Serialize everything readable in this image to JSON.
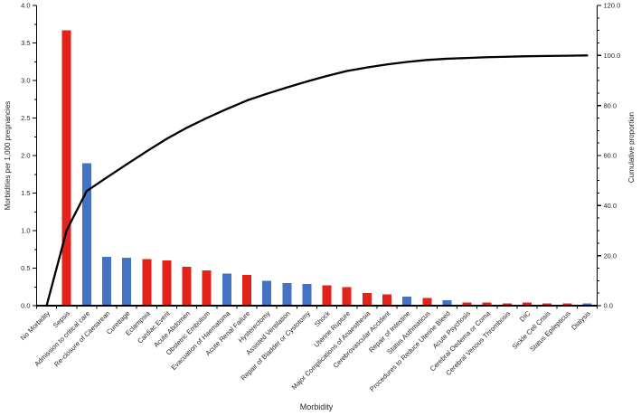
{
  "figure": {
    "background": "#ffffff"
  },
  "chart_data": {
    "type": "bar",
    "subtype": "pareto (bars + cumulative line on secondary axis)",
    "title": "",
    "xlabel": "Morbidity",
    "ylabel_left": "Morbidities per 1,000 pregnancies",
    "ylabel_right": "Cumulative proportion",
    "grid": false,
    "legend": "none",
    "y_left": {
      "min": 0.0,
      "max": 4.0,
      "major_step": 0.5,
      "minor_step": 0.25,
      "decimals": 1
    },
    "y_right": {
      "min": 0.0,
      "max": 120.0,
      "major_step": 20.0,
      "minor_step": 5.0,
      "decimals": 1
    },
    "categories": [
      "No Morbidity",
      "Sepsis",
      "Admission to critical care",
      "Re-closure of Caesarean",
      "Curettage",
      "Eclampsia",
      "Cardiac Event",
      "Acute Abdomen",
      "Obstetric Embolism",
      "Evacuation of Haematoma",
      "Acute Renal Failure",
      "Hysterectomy",
      "Assisted Ventilation",
      "Repair of Bladder or Cystotomy",
      "Shock",
      "Uterine Rupture",
      "Major Complications of Anaesthesia",
      "Cerebrovascular Accident",
      "Repair of Intestine",
      "Status Asthmaticus",
      "Procedures to Reduce Uterine Bleed",
      "Acute Psychosis",
      "Cerebral Oedema or Coma",
      "Cerebral Venous Thrombosis",
      "DIC",
      "Sickle Cell Crisis",
      "Status Epilepticus",
      "Dialysis"
    ],
    "bar_series": {
      "name": "Morbidities per 1,000 pregnancies",
      "axis": "left",
      "values": [
        0,
        3.67,
        1.9,
        0.65,
        0.64,
        0.62,
        0.6,
        0.52,
        0.47,
        0.43,
        0.41,
        0.33,
        0.3,
        0.29,
        0.27,
        0.25,
        0.17,
        0.15,
        0.12,
        0.1,
        0.07,
        0.04,
        0.04,
        0.03,
        0.04,
        0.03,
        0.03,
        0.03
      ],
      "colors": [
        null,
        "red",
        "blue",
        "blue",
        "blue",
        "red",
        "red",
        "red",
        "red",
        "blue",
        "red",
        "blue",
        "blue",
        "blue",
        "red",
        "red",
        "red",
        "red",
        "blue",
        "red",
        "blue",
        "red",
        "red",
        "red",
        "red",
        "red",
        "red",
        "blue"
      ]
    },
    "line_series": {
      "name": "Cumulative proportion",
      "axis": "right",
      "values": [
        0.0,
        30.1,
        45.8,
        51.2,
        56.5,
        61.7,
        66.7,
        71.1,
        75.0,
        78.6,
        82.0,
        84.7,
        87.2,
        89.6,
        91.8,
        93.8,
        95.2,
        96.4,
        97.4,
        98.2,
        98.7,
        99.0,
        99.3,
        99.5,
        99.7,
        99.8,
        99.9,
        100.0
      ]
    },
    "palette": {
      "red": "#e2231a",
      "blue": "#4472c4",
      "line": "#000000",
      "axis": "#000000",
      "label": "#262626"
    }
  }
}
